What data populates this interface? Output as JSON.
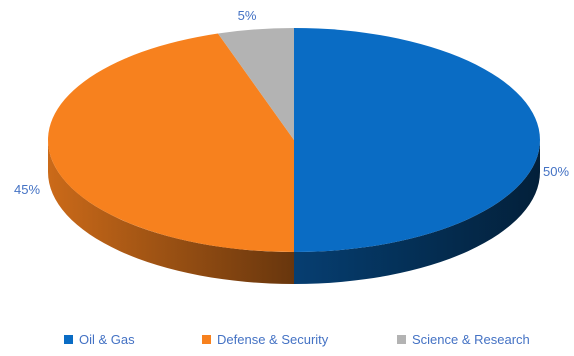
{
  "chart_data": {
    "type": "pie",
    "style": "3d",
    "categories": [
      "Oil & Gas",
      "Defense & Security",
      "Science & Research"
    ],
    "values": [
      50,
      45,
      5
    ],
    "value_labels": [
      "50%",
      "45%",
      "5%"
    ],
    "colors": [
      "#0a6cc4",
      "#f7811e",
      "#b3b3b3"
    ],
    "legend": "bottom",
    "title": ""
  }
}
